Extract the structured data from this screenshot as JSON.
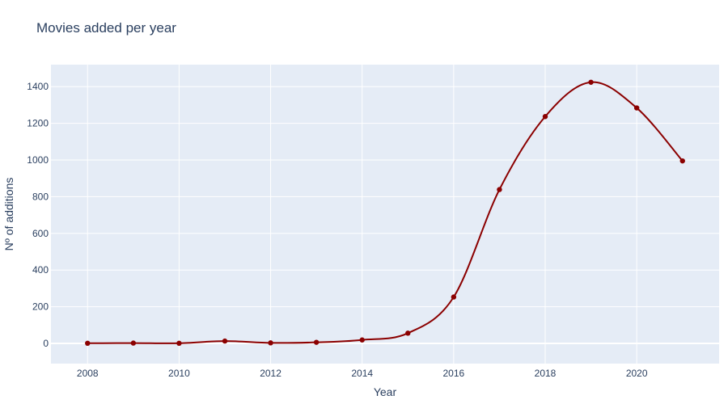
{
  "chart_data": {
    "type": "line",
    "title": "Movies added per year",
    "xlabel": "Year",
    "ylabel": "Nº of additions",
    "x": [
      2008,
      2009,
      2010,
      2011,
      2012,
      2013,
      2014,
      2015,
      2016,
      2017,
      2018,
      2019,
      2020,
      2021
    ],
    "series": [
      {
        "values": [
          1,
          2,
          1,
          13,
          3,
          6,
          19,
          56,
          253,
          839,
          1237,
          1424,
          1284,
          995
        ],
        "color": "#8b0000"
      }
    ],
    "xlim": [
      2007.2,
      2021.8
    ],
    "ylim": [
      -110,
      1520
    ],
    "x_ticks": [
      2008,
      2010,
      2012,
      2014,
      2016,
      2018,
      2020
    ],
    "x_tick_labels": [
      "2008",
      "2010",
      "2012",
      "2014",
      "2016",
      "2018",
      "2020"
    ],
    "y_ticks": [
      0,
      200,
      400,
      600,
      800,
      1000,
      1200,
      1400
    ],
    "y_tick_labels": [
      "0",
      "200",
      "400",
      "600",
      "800",
      "1000",
      "1200",
      "1400"
    ],
    "grid": true,
    "line_shape": "spline",
    "markers": true,
    "plot_background": "#e5ecf6",
    "grid_color": "#ffffff",
    "text_color": "#2a3f5f"
  }
}
